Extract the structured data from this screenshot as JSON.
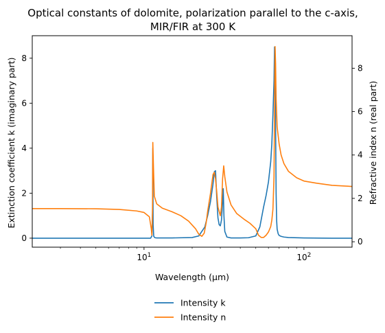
{
  "chart_data": {
    "type": "line",
    "title": "Optical constants of dolomite, polarization parallel to the c-axis,",
    "subtitle": "MIR/FIR at 300 K",
    "xlabel": "Wavelength (μm)",
    "ylabel_left": "Extinction coefficient k (imaginary part)",
    "ylabel_right": "Refractive index n (real part)",
    "xscale": "log",
    "xlim": [
      2,
      200
    ],
    "ylim_left": [
      -0.4,
      9.0
    ],
    "ylim_right": [
      -0.25,
      9.5
    ],
    "x_tick_labels": [
      "10^1",
      "10^2"
    ],
    "y_ticks_left": [
      0,
      2,
      4,
      6,
      8
    ],
    "y_ticks_right": [
      0,
      2,
      4,
      6,
      8
    ],
    "grid": false,
    "legend_position": "bottom-center, below plot",
    "series": [
      {
        "name": "Intensity k",
        "axis": "left",
        "color": "#1f77b4",
        "x": [
          2,
          5,
          10,
          11.0,
          11.2,
          11.3,
          11.35,
          11.4,
          11.5,
          11.7,
          12,
          15,
          20,
          22,
          24,
          25,
          26,
          27,
          27.5,
          28,
          28.5,
          29,
          29.5,
          30,
          30.5,
          31,
          31.3,
          31.6,
          32,
          33,
          35,
          40,
          45,
          50,
          53,
          56,
          58,
          60,
          62,
          63,
          64,
          65,
          65.5,
          66,
          66.5,
          67,
          67.5,
          68,
          69,
          70,
          72,
          75,
          80,
          100,
          150,
          200
        ],
        "y": [
          0.0,
          0.0,
          0.0,
          0.0,
          0.1,
          1.1,
          4.0,
          0.6,
          0.08,
          0.02,
          0.01,
          0.01,
          0.03,
          0.1,
          0.5,
          1.0,
          1.6,
          2.4,
          2.95,
          3.0,
          1.8,
          0.9,
          0.6,
          0.55,
          0.8,
          1.6,
          2.2,
          1.0,
          0.3,
          0.05,
          0.01,
          0.01,
          0.02,
          0.1,
          0.5,
          1.4,
          1.9,
          2.5,
          3.4,
          4.2,
          5.5,
          7.0,
          8.5,
          8.4,
          5.0,
          2.0,
          0.8,
          0.4,
          0.2,
          0.12,
          0.08,
          0.05,
          0.03,
          0.01,
          0.0,
          0.0
        ]
      },
      {
        "name": "Intensity n",
        "axis": "right",
        "color": "#ff7f0e",
        "x": [
          2,
          3,
          5,
          7,
          9,
          10,
          10.8,
          11.1,
          11.2,
          11.3,
          11.35,
          11.45,
          11.6,
          12,
          13,
          15,
          17,
          19,
          21,
          22,
          23,
          23.8,
          24.5,
          25,
          26,
          27,
          27.5,
          28,
          28.5,
          29,
          30,
          30.5,
          31,
          31.5,
          32,
          33,
          35,
          38,
          42,
          46,
          50,
          52,
          54,
          56,
          58,
          60,
          62,
          63,
          64,
          65,
          65.5,
          66,
          66.5,
          67,
          68,
          70,
          72,
          75,
          80,
          90,
          100,
          120,
          150,
          200
        ],
        "y": [
          1.53,
          1.53,
          1.52,
          1.49,
          1.42,
          1.35,
          1.15,
          0.6,
          0.3,
          1.5,
          4.58,
          3.5,
          2.1,
          1.75,
          1.55,
          1.38,
          1.2,
          0.95,
          0.6,
          0.35,
          0.25,
          0.4,
          0.9,
          1.4,
          2.2,
          3.1,
          3.2,
          2.9,
          2.3,
          1.6,
          1.2,
          1.6,
          2.9,
          3.5,
          3.0,
          2.3,
          1.7,
          1.3,
          1.05,
          0.85,
          0.6,
          0.3,
          0.2,
          0.2,
          0.3,
          0.45,
          0.7,
          1.0,
          1.5,
          3.0,
          6.0,
          9.0,
          8.2,
          6.6,
          5.3,
          4.5,
          4.0,
          3.6,
          3.25,
          2.95,
          2.8,
          2.7,
          2.6,
          2.55
        ]
      }
    ]
  }
}
